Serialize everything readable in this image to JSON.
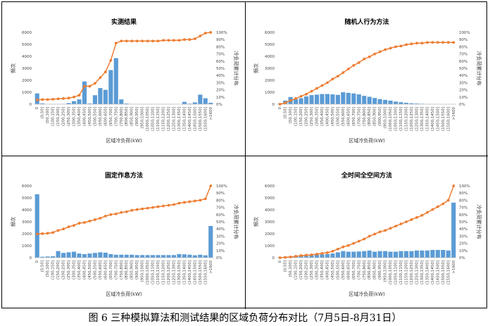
{
  "caption": "图 6 三种模拟算法和测试结果的区域负荷分布对比（7月5日-8月31日）",
  "colors": {
    "bar": "#5B9BD5",
    "line": "#ED7D31"
  },
  "chart_data": [
    {
      "type": "bar+line",
      "title": "实测结果",
      "xlabel": "区域冷负荷(kW)",
      "ylabel": "频次",
      "y2label": "冷负荷累计分布",
      "ylim": [
        0,
        6000
      ],
      "yticks": [
        "0",
        "1000",
        "2000",
        "3000",
        "4000",
        "5000",
        "6000"
      ],
      "y2lim": [
        0,
        100
      ],
      "y2ticks": [
        "0%",
        "10%",
        "20%",
        "30%",
        "40%",
        "50%",
        "60%",
        "70%",
        "80%",
        "90%",
        "100%"
      ],
      "categories": [
        "0",
        "(0,50]",
        "(50,100]",
        "(100,150]",
        "(150,200]",
        "(200,250]",
        "(250,300]",
        "(300,350]",
        "(350,400]",
        "(400,450]",
        "(450,500]",
        "(500,550]",
        "(550,600]",
        "(600,650]",
        "(650,700]",
        "(700,750]",
        "(750,800]",
        "(800,850]",
        "(850,900]",
        "(900,950]",
        "(950,1000]",
        "(1000,1050]",
        "(1050,1100]",
        "(1100,1150]",
        "(1150,1200]",
        "(1200,1250]",
        "(1250,1300]",
        "(1300,1350]",
        "(1350,1400]",
        "(1400,1450]",
        "(1450,1500]",
        "(1500,1550]",
        "(1550,1600]",
        ">1600"
      ],
      "x_tick_labels": [
        "0",
        "(0,50]",
        "(50,100]",
        "(100,150]",
        "(150,200]",
        "(200,250]",
        "(250,300]",
        "(300,350]",
        "(350,400]",
        "(400,450]",
        "(450,500]",
        "(500,550]",
        "(550,600]",
        "(600,650]",
        "(650,700]",
        "(700,750]",
        "(750,800]",
        "(800,850]",
        "(850,900]",
        "(900,950]",
        "(950,1000]",
        "(1000,1050]",
        "(1050,1100]",
        "(1100,1150]",
        "(1150,1200]",
        "(1200,1250]",
        "(1250,1300]",
        "(1300,1350]",
        "(1350,1400]",
        "(1400,1450]",
        "(1450,1500]",
        "(1500,1550]",
        "(1550,1600]",
        ">1600"
      ],
      "frequency": [
        900,
        70,
        20,
        20,
        20,
        30,
        100,
        250,
        400,
        1900,
        60,
        750,
        1350,
        1200,
        2850,
        3850,
        400,
        60,
        20,
        20,
        20,
        30,
        20,
        30,
        30,
        20,
        20,
        10,
        200,
        50,
        150,
        800,
        500,
        120
      ],
      "cumulative": [
        6,
        6.5,
        6.5,
        7,
        7.5,
        8,
        8.5,
        10,
        12.5,
        25,
        25,
        29,
        37,
        45,
        61,
        85,
        88,
        88,
        88,
        88,
        88,
        88,
        88,
        88,
        89,
        89,
        89,
        89,
        90,
        90,
        91,
        95,
        99,
        100
      ]
    },
    {
      "type": "bar+line",
      "title": "随机人行为方法",
      "xlabel": "区域冷负荷(kW)",
      "ylabel": "频次",
      "y2label": "冷负荷累计分布",
      "ylim": [
        0,
        6000
      ],
      "yticks": [
        "0",
        "1000",
        "2000",
        "3000",
        "4000",
        "5000",
        "6000"
      ],
      "y2lim": [
        0,
        100
      ],
      "y2ticks": [
        "0%",
        "10%",
        "20%",
        "30%",
        "40%",
        "50%",
        "60%",
        "70%",
        "80%",
        "90%",
        "100%"
      ],
      "categories": [
        "0",
        "(0,50]",
        "(50,100]",
        "(100,150]",
        "(150,200]",
        "(200,250]",
        "(250,300]",
        "(300,350]",
        "(350,400]",
        "(400,450]",
        "(450,500]",
        "(500,550]",
        "(550,600]",
        "(600,650]",
        "(650,700]",
        "(700,750]",
        "(750,800]",
        "(800,850]",
        "(850,900]",
        "(900,950]",
        "(950,1000]",
        "(1000,1050]",
        "(1050,1100]",
        "(1100,1150]",
        "(1150,1200]",
        "(1200,1250]",
        "(1250,1300]",
        "(1300,1350]",
        "(1350,1400]",
        "(1400,1450]",
        "(1450,1500]",
        "(1500,1550]",
        "(1550,1600]",
        ">1600"
      ],
      "x_tick_labels": [
        "0",
        "(0,50]",
        "(50,100]",
        "(100,150]",
        "(150,200]",
        "(200,250]",
        "(250,300]",
        "(300,350]",
        "(350,400]",
        "(400,450]",
        "(450,500]",
        "(500,550]",
        "(550,600]",
        "(600,650]",
        "(650,700]",
        "(700,750]",
        "(750,800]",
        "(800,850]",
        "(850,900]",
        "(900,950]",
        "(950,1000]",
        "(1000,1050]",
        "(1050,1100]",
        "(1100,1150]",
        "(1150,1200]",
        "(1200,1250]",
        "(1250,1300]",
        "(1300,1350]",
        "(1350,1400]",
        "(1400,1450]",
        "(1450,1500]",
        "(1500,1550]",
        "(1550,1600]",
        ">1600"
      ],
      "frequency": [
        60,
        300,
        600,
        430,
        500,
        650,
        760,
        800,
        850,
        850,
        820,
        780,
        1000,
        950,
        900,
        820,
        700,
        620,
        520,
        430,
        360,
        300,
        220,
        170,
        120,
        80,
        60,
        40,
        20,
        10,
        10,
        5,
        5,
        10
      ],
      "cumulative": [
        0,
        2,
        5,
        8,
        11,
        14,
        18,
        22,
        26,
        30,
        35,
        39,
        44,
        49,
        54,
        58,
        63,
        66,
        70,
        73,
        76,
        78,
        80,
        81,
        83,
        84,
        85,
        85,
        86,
        86,
        86,
        86,
        86,
        86
      ]
    },
    {
      "type": "bar+line",
      "title": "固定作息方法",
      "xlabel": "区域冷负荷(kW)",
      "ylabel": "频次",
      "y2label": "冷负荷累计分布",
      "ylim": [
        0,
        6000
      ],
      "yticks": [
        "0",
        "1000",
        "2000",
        "3000",
        "4000",
        "5000",
        "6000"
      ],
      "y2lim": [
        0,
        100
      ],
      "y2ticks": [
        "0%",
        "10%",
        "20%",
        "30%",
        "40%",
        "50%",
        "60%",
        "70%",
        "80%",
        "90%",
        "100%"
      ],
      "categories": [
        "0",
        "(0,50]",
        "(50,100]",
        "(100,150]",
        "(150,200]",
        "(200,250]",
        "(250,300]",
        "(300,350]",
        "(350,400]",
        "(400,450]",
        "(450,500]",
        "(500,550]",
        "(550,600]",
        "(600,650]",
        "(650,700]",
        "(700,750]",
        "(750,800]",
        "(800,850]",
        "(850,900]",
        "(900,950]",
        "(950,1000]",
        "(1000,1050]",
        "(1050,1100]",
        "(1100,1150]",
        "(1150,1200]",
        "(1200,1250]",
        "(1250,1300]",
        "(1300,1350]",
        "(1350,1400]",
        "(1400,1450]",
        "(1450,1500]",
        "(1500,1550]",
        "(1550,1600]",
        ">1600"
      ],
      "x_tick_labels": [
        "0",
        "(0,50]",
        "(50,100]",
        "(100,150]",
        "(150,200]",
        "(200,250]",
        "(250,300]",
        "(300,350]",
        "(350,400]",
        "(400,450]",
        "(450,500]",
        "(500,550]",
        "(550,600]",
        "(600,650]",
        "(650,700]",
        "(700,750]",
        "(750,800]",
        "(800,850]",
        "(850,900]",
        "(900,950]",
        "(950,1000]",
        "(1000,1050]",
        "(1050,1100]",
        "(1100,1150]",
        "(1150,1200]",
        "(1200,1250]",
        "(1250,1300]",
        "(1300,1350]",
        "(1350,1400]",
        "(1400,1450]",
        "(1450,1500]",
        "(1500,1550]",
        "(1550,1600]",
        ">1600"
      ],
      "frequency": [
        5300,
        80,
        100,
        120,
        550,
        400,
        450,
        500,
        350,
        300,
        350,
        400,
        450,
        420,
        300,
        250,
        250,
        250,
        250,
        220,
        220,
        220,
        220,
        220,
        220,
        220,
        220,
        300,
        280,
        250,
        200,
        250,
        200,
        2650
      ],
      "cumulative": [
        33,
        33.5,
        34,
        35,
        38,
        40,
        43,
        45,
        48,
        49,
        51,
        53,
        55,
        58,
        60,
        61,
        63,
        64,
        66,
        67,
        68,
        69,
        70,
        71,
        72,
        73,
        74,
        76,
        77,
        78,
        79,
        80,
        82,
        100
      ]
    },
    {
      "type": "bar+line",
      "title": "全时间全空间方法",
      "xlabel": "区域冷负荷(kW)",
      "ylabel": "频次",
      "y2label": "冷负荷累计分布",
      "ylim": [
        0,
        6000
      ],
      "yticks": [
        "0",
        "1000",
        "2000",
        "3000",
        "4000",
        "5000",
        "6000"
      ],
      "y2lim": [
        0,
        100
      ],
      "y2ticks": [
        "0%",
        "10%",
        "20%",
        "30%",
        "40%",
        "50%",
        "60%",
        "70%",
        "80%",
        "90%",
        "100%"
      ],
      "categories": [
        "0",
        "(0,50]",
        "(50,100]",
        "(100,150]",
        "(150,200]",
        "(200,250]",
        "(250,300]",
        "(300,350]",
        "(350,400]",
        "(400,450]",
        "(450,500]",
        "(500,550]",
        "(550,600]",
        "(600,650]",
        "(650,700]",
        "(700,750]",
        "(750,800]",
        "(800,850]",
        "(850,900]",
        "(900,950]",
        "(950,1000]",
        "(1000,1050]",
        "(1050,1100]",
        "(1100,1150]",
        "(1150,1200]",
        "(1200,1250]",
        "(1250,1300]",
        "(1300,1350]",
        "(1350,1400]",
        "(1400,1450]",
        "(1450,1500]",
        "(1500,1550]",
        "(1550,1600]",
        ">1600"
      ],
      "x_tick_labels": [
        "0",
        "(0,50]",
        "(50,100]",
        "(100,150]",
        "(150,200]",
        "(200,250]",
        "(250,300]",
        "(300,350]",
        "(350,400]",
        "(400,450]",
        "(450,500]",
        "(500,550]",
        "(550,600]",
        "(600,650]",
        "(650,700]",
        "(700,750]",
        "(750,800]",
        "(800,850]",
        "(850,900]",
        "(900,950]",
        "(950,1000]",
        "(1000,1050]",
        "(1050,1100]",
        "(1100,1150]",
        "(1150,1200]",
        "(1200,1250]",
        "(1250,1300]",
        "(1300,1350]",
        "(1350,1400]",
        "(1400,1450]",
        "(1450,1500]",
        "(1500,1550]",
        "(1550,1600]",
        ">1600"
      ],
      "frequency": [
        40,
        80,
        100,
        120,
        200,
        150,
        200,
        250,
        280,
        300,
        350,
        450,
        550,
        500,
        500,
        520,
        550,
        600,
        500,
        550,
        550,
        500,
        500,
        550,
        550,
        550,
        600,
        600,
        600,
        650,
        650,
        650,
        600,
        4600
      ],
      "cumulative": [
        0,
        0.5,
        1,
        2,
        3,
        3.5,
        4,
        5,
        6,
        7,
        9,
        12,
        15,
        17,
        20,
        23,
        26,
        30,
        33,
        36,
        38,
        41,
        44,
        47,
        50,
        53,
        56,
        59,
        63,
        67,
        71,
        75,
        80,
        100
      ]
    }
  ]
}
